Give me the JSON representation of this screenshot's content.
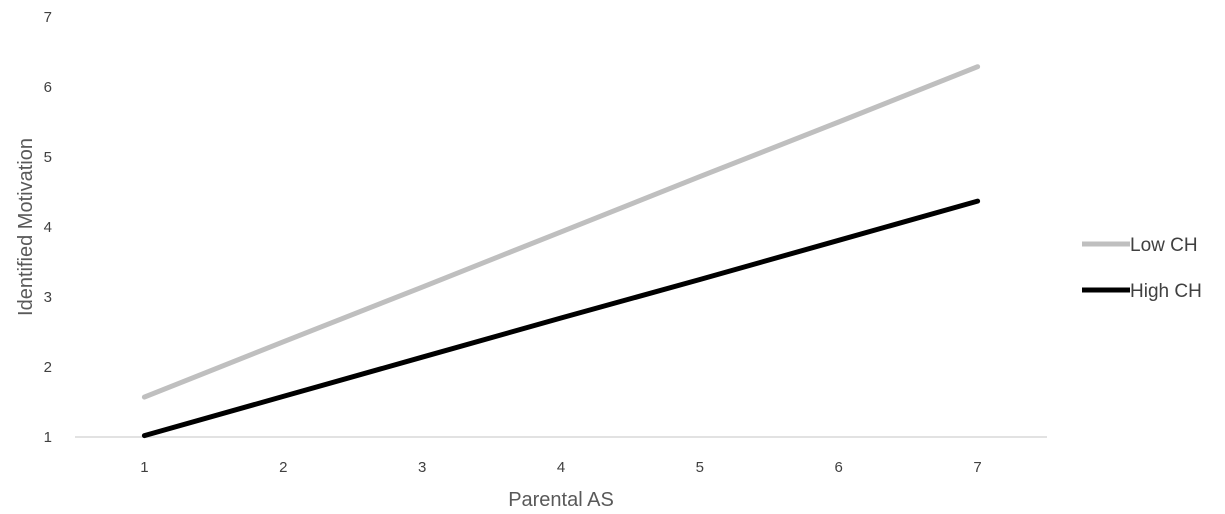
{
  "chart_data": {
    "type": "line",
    "title": "",
    "xlabel": "Parental AS",
    "ylabel": "Identified Motivation",
    "x": [
      1,
      2,
      3,
      4,
      5,
      6,
      7
    ],
    "x_tick_labels": [
      "1",
      "2",
      "3",
      "4",
      "5",
      "6",
      "7"
    ],
    "y_tick_labels": [
      "1",
      "2",
      "3",
      "4",
      "5",
      "6",
      "7"
    ],
    "xlim": [
      0.5,
      7.5
    ],
    "ylim": [
      1,
      7
    ],
    "grid": false,
    "legend_position": "right",
    "series": [
      {
        "name": "Low CH",
        "color": "#bfbfbf",
        "values": [
          1.57,
          2.36,
          3.14,
          3.93,
          4.72,
          5.5,
          6.29
        ]
      },
      {
        "name": "High CH",
        "color": "#000000",
        "values": [
          1.02,
          1.58,
          2.14,
          2.7,
          3.25,
          3.81,
          4.37
        ]
      }
    ]
  },
  "colors": {
    "axis_line": "#d9d9d9",
    "tick_text": "#404040",
    "axis_title_text": "#595959"
  }
}
